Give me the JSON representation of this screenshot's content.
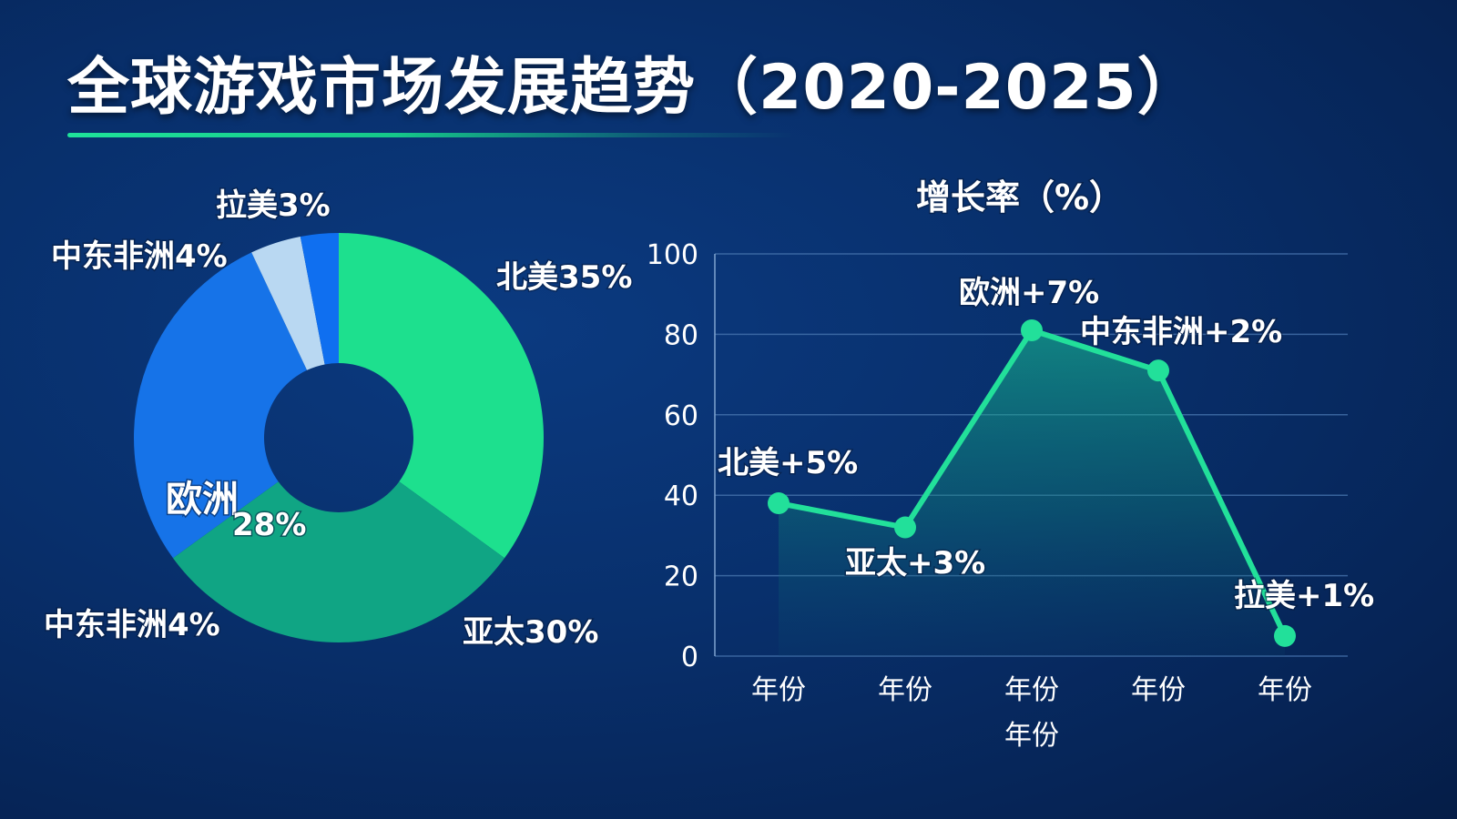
{
  "title": "全球游戏市场发展趋势（2020-2025）",
  "chart_data": [
    {
      "type": "pie",
      "donut": true,
      "slices": [
        {
          "label": "北美35%",
          "value": 35,
          "color": "#1de08e"
        },
        {
          "label": "亚太30%",
          "value": 30,
          "color": "#10a584"
        },
        {
          "label": "欧洲",
          "sublabel": "28%",
          "value": 28,
          "color": "#1673e8"
        },
        {
          "label": "中东非洲4%",
          "value": 4,
          "color": "#b9d8f2"
        },
        {
          "label": "拉美3%",
          "value": 3,
          "color": "#0f6ff0"
        }
      ],
      "extra_labels": [
        "中东非洲4%"
      ]
    },
    {
      "type": "area",
      "title": "增长率（%）",
      "ylim": [
        0,
        100
      ],
      "yticks": [
        0,
        20,
        40,
        60,
        80,
        100
      ],
      "categories": [
        "年份",
        "年份",
        "年份",
        "年份",
        "年份"
      ],
      "xlabel": "年份",
      "series": [
        {
          "values": [
            38,
            32,
            81,
            71,
            5
          ]
        }
      ],
      "point_labels": [
        "北美+5%",
        "亚太+3%",
        "欧洲+7%",
        "中东非洲+2%",
        "拉美+1%"
      ],
      "grid": true,
      "line_color": "#22e09a"
    }
  ]
}
